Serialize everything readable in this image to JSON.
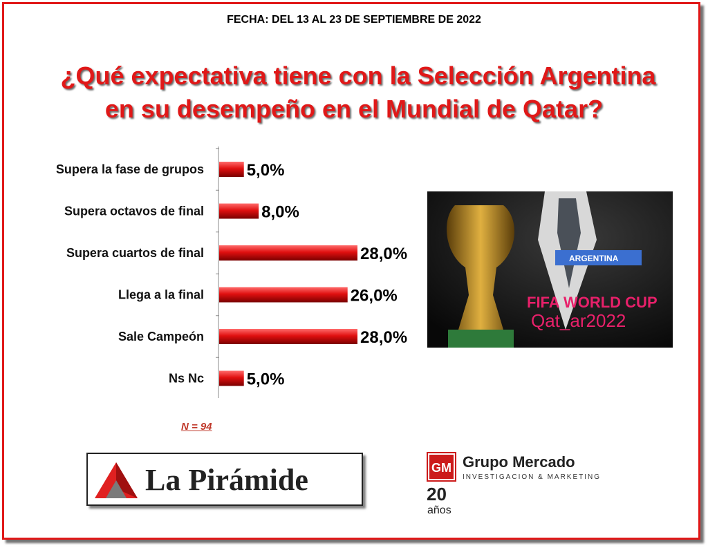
{
  "header": {
    "date": "FECHA: DEL 13 AL 23 DE SEPTIEMBRE DE 2022",
    "title_line1": "¿Qué expectativa tiene con la Selección Argentina",
    "title_line2": "en su desempeño en el Mundial de Qatar?"
  },
  "chart_data": {
    "type": "bar",
    "orientation": "horizontal",
    "title": "¿Qué expectativa tiene con la Selección Argentina en su desempeño en el Mundial de Qatar?",
    "categories": [
      "Supera la fase de grupos",
      "Supera octavos de final",
      "Supera cuartos de final",
      "Llega a la final",
      "Sale Campeón",
      "Ns Nc"
    ],
    "values": [
      5.0,
      8.0,
      28.0,
      26.0,
      28.0,
      5.0
    ],
    "value_labels": [
      "5,0%",
      "8,0%",
      "28,0%",
      "26,0%",
      "28,0%",
      "5,0%"
    ],
    "unit": "%",
    "xlim": [
      0,
      28
    ],
    "grid": false,
    "bar_color": "#e01010"
  },
  "sample": "N = 94",
  "photo": {
    "tag_text": "ARGENTINA",
    "cup_line1": "FIFA WORLD CUP",
    "cup_line2": "Qat_ar2022"
  },
  "logos": {
    "piramide": "La Pirámide",
    "gm_initials": "GM",
    "gm_name": "Grupo Mercado",
    "gm_tagline": "INVESTIGACION & MARKETING",
    "gm_years": "20",
    "gm_years_word": "años"
  },
  "colors": {
    "accent": "#e01818",
    "bar": "#e01010",
    "photo_text": "#e8206a"
  }
}
